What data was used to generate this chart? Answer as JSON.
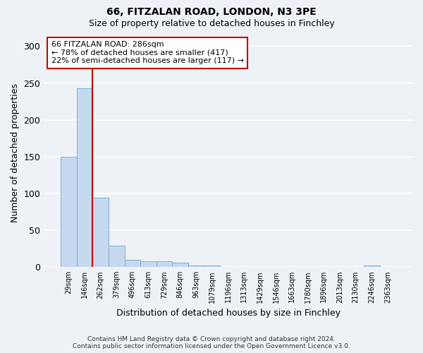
{
  "title1": "66, FITZALAN ROAD, LONDON, N3 3PE",
  "title2": "Size of property relative to detached houses in Finchley",
  "xlabel": "Distribution of detached houses by size in Finchley",
  "ylabel": "Number of detached properties",
  "categories": [
    "29sqm",
    "146sqm",
    "262sqm",
    "379sqm",
    "496sqm",
    "613sqm",
    "729sqm",
    "846sqm",
    "963sqm",
    "1079sqm",
    "1196sqm",
    "1313sqm",
    "1429sqm",
    "1546sqm",
    "1663sqm",
    "1780sqm",
    "1896sqm",
    "2013sqm",
    "2130sqm",
    "2246sqm",
    "2363sqm"
  ],
  "values": [
    150,
    243,
    94,
    29,
    10,
    8,
    8,
    6,
    2,
    2,
    0,
    0,
    0,
    0,
    0,
    0,
    0,
    0,
    0,
    2,
    0
  ],
  "bar_color": "#c5d9ee",
  "bar_edge_color": "#7bafd4",
  "vline_x_idx": 1,
  "vline_color": "#cc0000",
  "annotation_line1": "66 FITZALAN ROAD: 286sqm",
  "annotation_line2": "← 78% of detached houses are smaller (417)",
  "annotation_line3": "22% of semi-detached houses are larger (117) →",
  "annotation_box_color": "#ffffff",
  "annotation_box_edge": "#cc0000",
  "ylim": [
    0,
    310
  ],
  "yticks": [
    0,
    50,
    100,
    150,
    200,
    250,
    300
  ],
  "footnote_line1": "Contains HM Land Registry data © Crown copyright and database right 2024.",
  "footnote_line2": "Contains public sector information licensed under the Open Government Licence v3.0.",
  "bg_color": "#eef2f7",
  "grid_color": "#ffffff",
  "title1_fontsize": 10,
  "title2_fontsize": 9
}
